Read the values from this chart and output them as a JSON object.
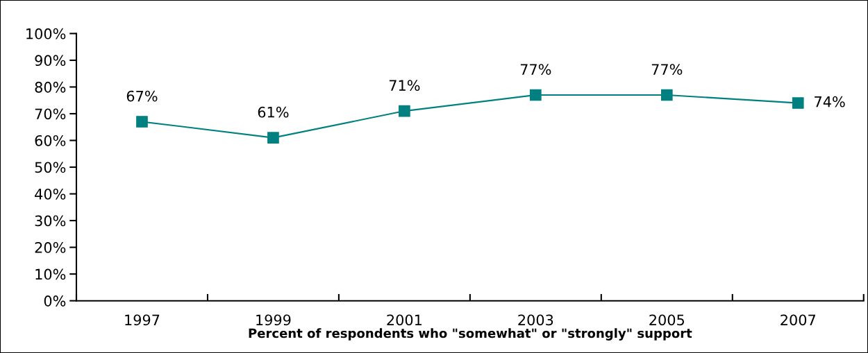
{
  "chart_data": {
    "type": "line",
    "xlabel": "Percent of respondents who \"somewhat\" or \"strongly\" support",
    "categories": [
      "1997",
      "1999",
      "2001",
      "2003",
      "2005",
      "2007"
    ],
    "series": [
      {
        "color": "#008080",
        "values": [
          67,
          61,
          71,
          77,
          77,
          74
        ]
      }
    ],
    "value_labels": [
      "67%",
      "61%",
      "71%",
      "77%",
      "77%",
      "74%"
    ],
    "ylim": [
      0,
      100
    ],
    "yticks": [
      {
        "value": 0,
        "label": "0%"
      },
      {
        "value": 10,
        "label": "10%"
      },
      {
        "value": 20,
        "label": "20%"
      },
      {
        "value": 30,
        "label": "30%"
      },
      {
        "value": 40,
        "label": "40%"
      },
      {
        "value": 50,
        "label": "50%"
      },
      {
        "value": 60,
        "label": "60%"
      },
      {
        "value": 70,
        "label": "70%"
      },
      {
        "value": 80,
        "label": "80%"
      },
      {
        "value": 90,
        "label": "90%"
      },
      {
        "value": 100,
        "label": "100%"
      }
    ],
    "marker": "square",
    "line_style": "solid",
    "grid": false,
    "legend": false
  }
}
